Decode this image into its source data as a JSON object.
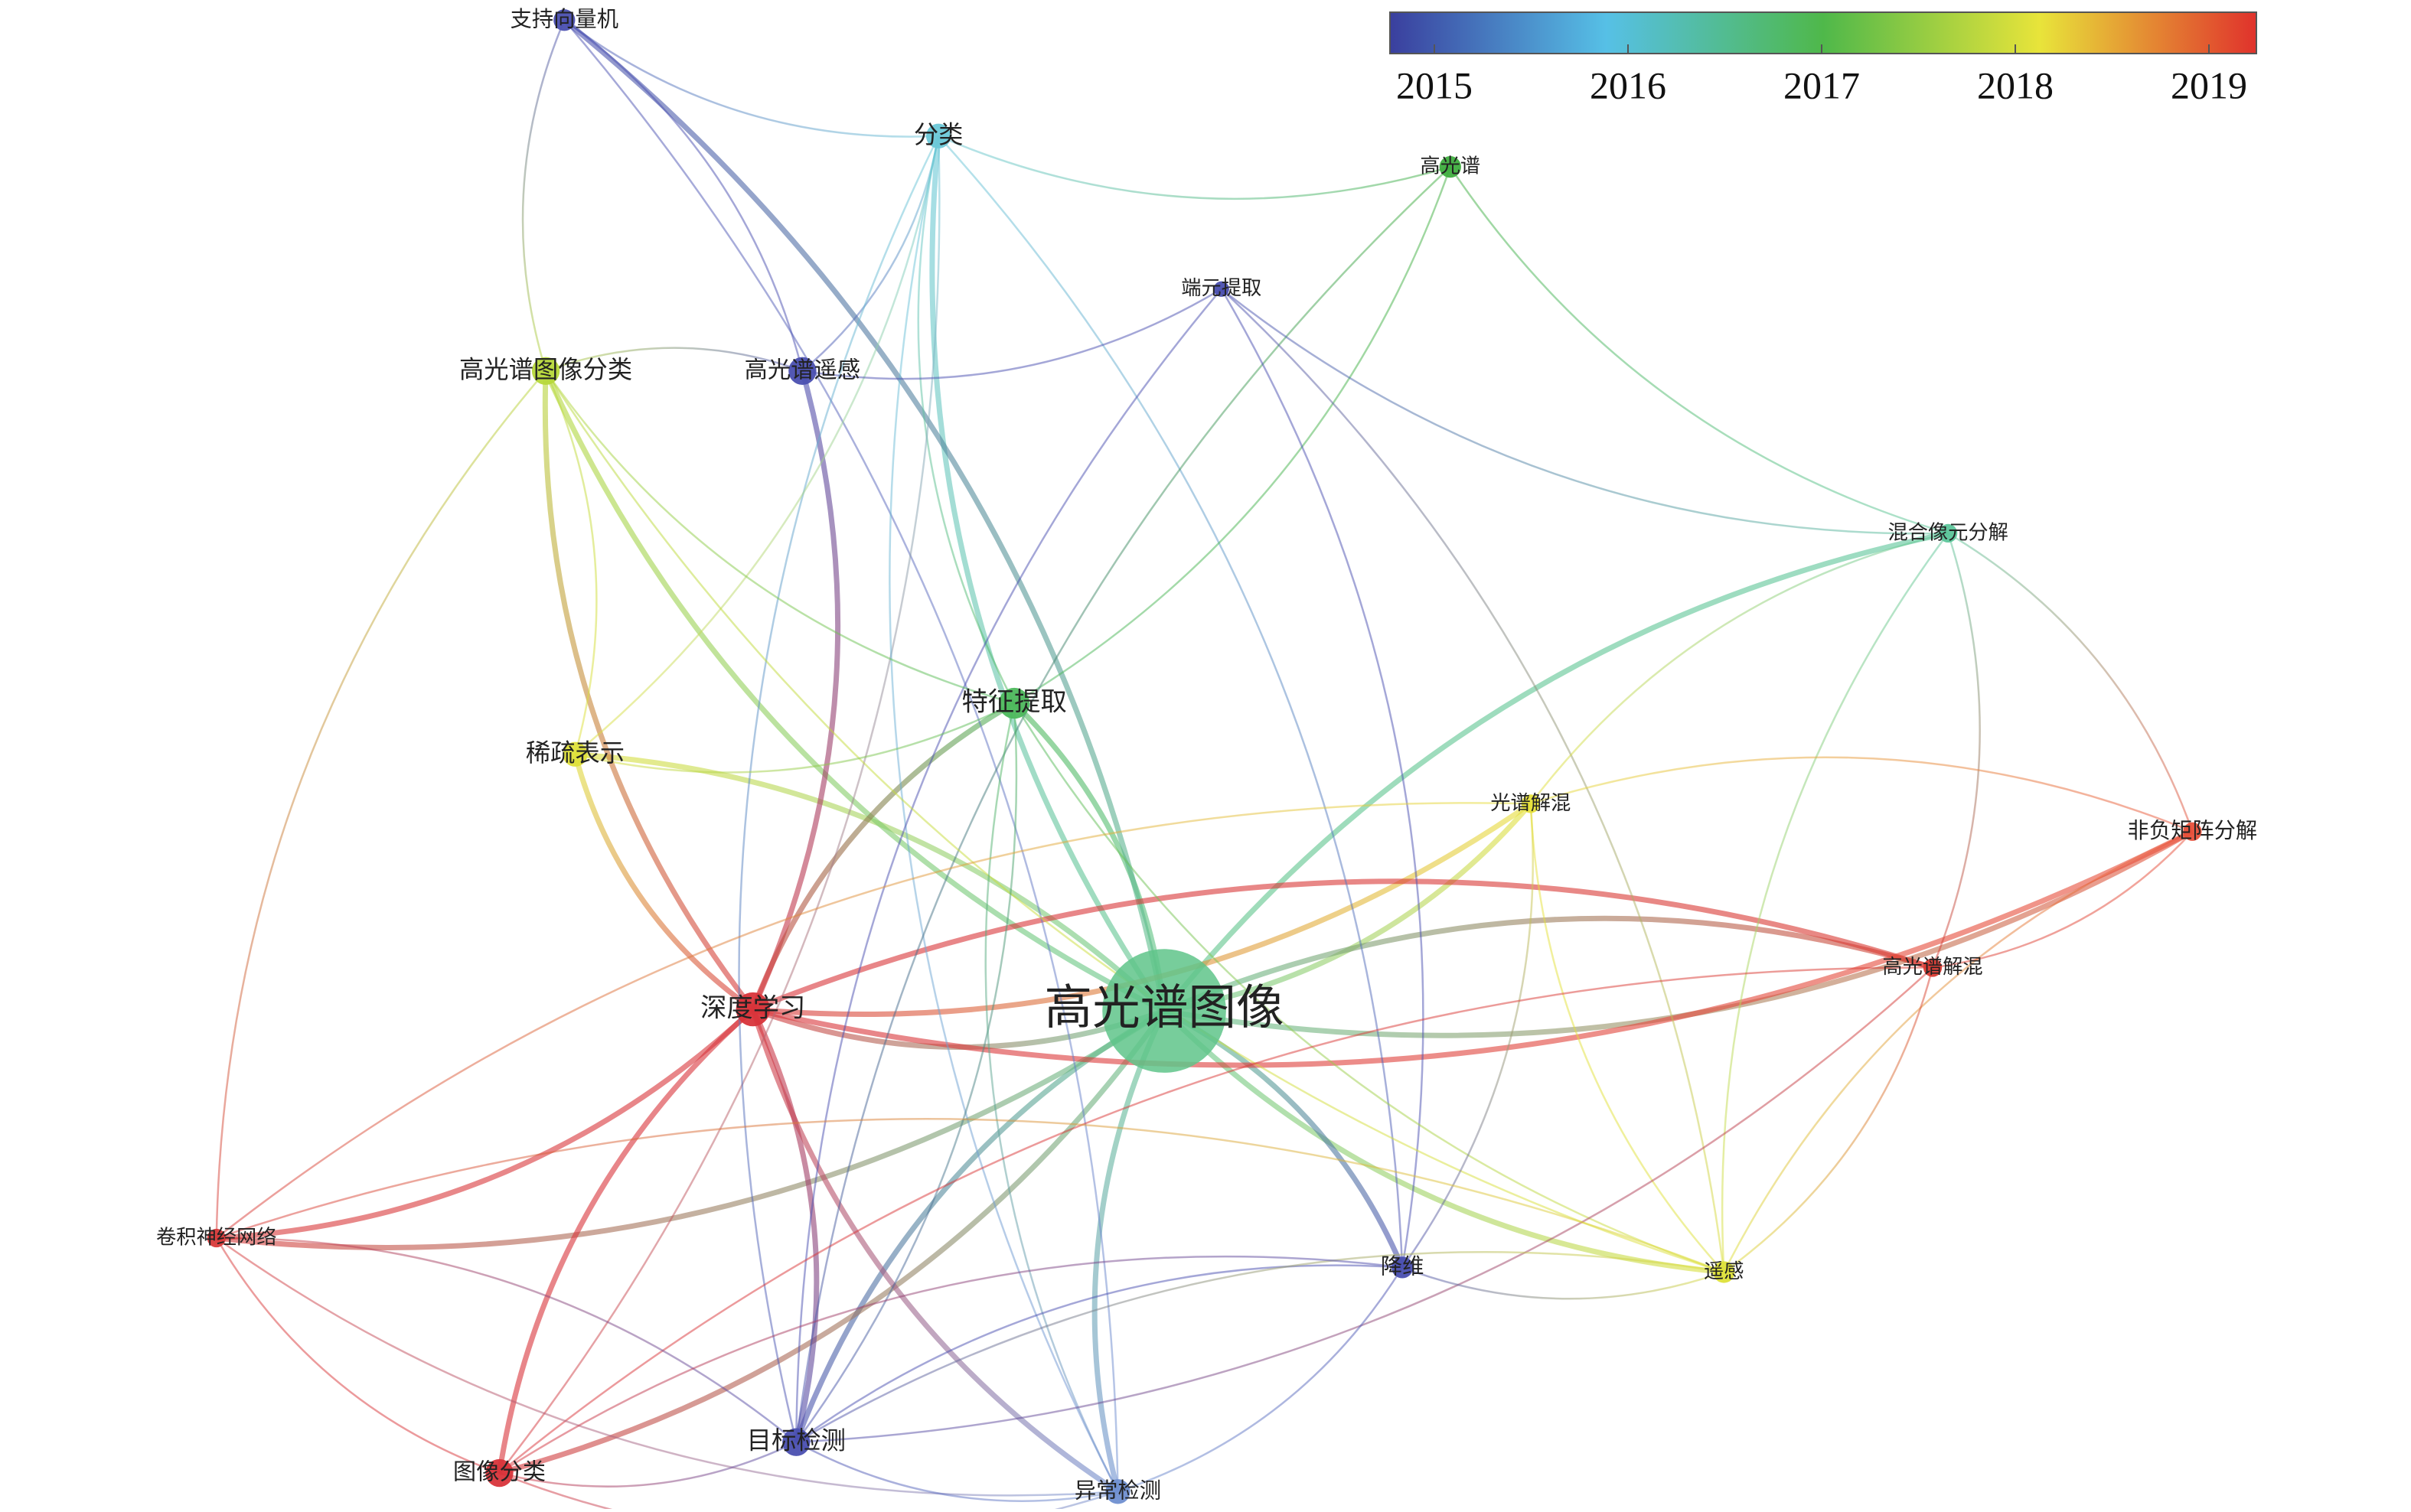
{
  "colorbar": {
    "ticks": [
      2015,
      2016,
      2017,
      2018,
      2019
    ]
  },
  "nodes": [
    {
      "label": "支持向量机"
    },
    {
      "label": "分类"
    },
    {
      "label": "高光谱"
    },
    {
      "label": "端元提取"
    },
    {
      "label": "高光谱图像分类"
    },
    {
      "label": "高光谱遥感"
    },
    {
      "label": "混合像元分解"
    },
    {
      "label": "特征提取"
    },
    {
      "label": "稀疏表示"
    },
    {
      "label": "光谱解混"
    },
    {
      "label": "非负矩阵分解"
    },
    {
      "label": "高光谱解混"
    },
    {
      "label": "深度学习"
    },
    {
      "label": "高光谱图像"
    },
    {
      "label": "卷积神经网络"
    },
    {
      "label": "降维"
    },
    {
      "label": "遥感"
    },
    {
      "label": "目标检测"
    },
    {
      "label": "图像分类"
    },
    {
      "label": "异常检测"
    }
  ]
}
